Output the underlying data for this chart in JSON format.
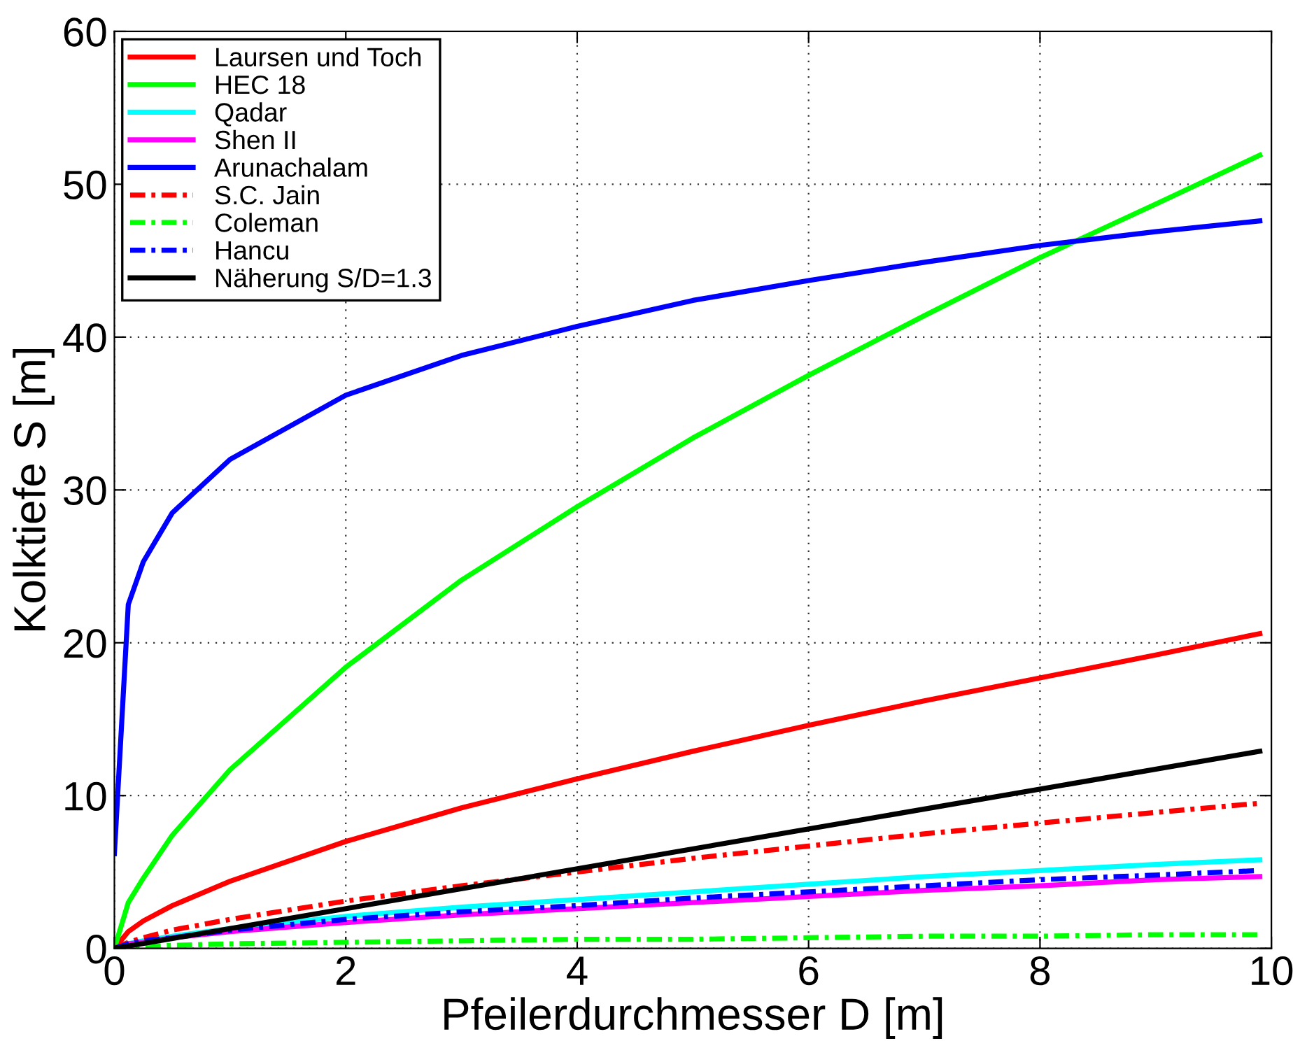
{
  "chart_data": {
    "type": "line",
    "xlabel": "Pfeilerdurchmesser D [m]",
    "ylabel": "Kolktiefe S [m]",
    "x": [
      0,
      0.12,
      0.25,
      0.5,
      1,
      2,
      3,
      4,
      5,
      6,
      7,
      8,
      9,
      9.9
    ],
    "xlim": [
      0,
      10
    ],
    "ylim": [
      0,
      60
    ],
    "xticks": [
      0,
      2,
      4,
      6,
      8,
      10
    ],
    "yticks": [
      0,
      10,
      20,
      30,
      40,
      50,
      60
    ],
    "grid": true,
    "legend": "top left",
    "series": [
      {
        "name": "Laursen und Toch",
        "color": "#ff0000",
        "line_style": "solid",
        "values": [
          0,
          1.1,
          1.8,
          2.8,
          4.4,
          7.0,
          9.2,
          11.1,
          12.9,
          14.6,
          16.2,
          17.7,
          19.2,
          20.6
        ]
      },
      {
        "name": "HEC 18",
        "color": "#00ff00",
        "line_style": "solid",
        "values": [
          0,
          3.0,
          4.6,
          7.4,
          11.7,
          18.4,
          24.1,
          28.9,
          33.4,
          37.5,
          41.4,
          45.2,
          48.7,
          51.9
        ]
      },
      {
        "name": "Qadar",
        "color": "#00ffff",
        "line_style": "solid",
        "values": [
          0,
          0.3,
          0.5,
          0.8,
          1.3,
          2.1,
          2.7,
          3.2,
          3.7,
          4.2,
          4.7,
          5.1,
          5.5,
          5.8
        ]
      },
      {
        "name": "Shen II",
        "color": "#ff00ff",
        "line_style": "solid",
        "values": [
          0,
          0.3,
          0.4,
          0.7,
          1.1,
          1.7,
          2.2,
          2.6,
          3.0,
          3.4,
          3.8,
          4.1,
          4.5,
          4.7
        ]
      },
      {
        "name": "Arunachalam",
        "color": "#0000ff",
        "line_style": "solid",
        "values": [
          6.2,
          22.5,
          25.3,
          28.5,
          32,
          36.2,
          38.8,
          40.7,
          42.4,
          43.7,
          44.9,
          46,
          46.9,
          47.6
        ]
      },
      {
        "name": "S.C. Jain",
        "color": "#ff0000",
        "line_style": "dashdot",
        "values": [
          0,
          0.4,
          0.7,
          1.2,
          1.9,
          3.1,
          4.1,
          5.0,
          5.9,
          6.7,
          7.5,
          8.2,
          8.9,
          9.5
        ]
      },
      {
        "name": "Coleman",
        "color": "#00ff00",
        "line_style": "dashdot",
        "values": [
          0,
          0.1,
          0.1,
          0.2,
          0.3,
          0.4,
          0.5,
          0.6,
          0.6,
          0.7,
          0.8,
          0.8,
          0.9,
          0.9
        ]
      },
      {
        "name": "Hancu",
        "color": "#0000ff",
        "line_style": "dashdot",
        "values": [
          0,
          0.3,
          0.5,
          0.7,
          1.2,
          1.9,
          2.4,
          2.8,
          3.3,
          3.7,
          4.1,
          4.5,
          4.8,
          5.1
        ]
      },
      {
        "name": "Näherung S/D=1.3",
        "color": "#000000",
        "line_style": "solid",
        "x": [
          0,
          9.9
        ],
        "values": [
          0,
          12.9
        ]
      }
    ]
  }
}
